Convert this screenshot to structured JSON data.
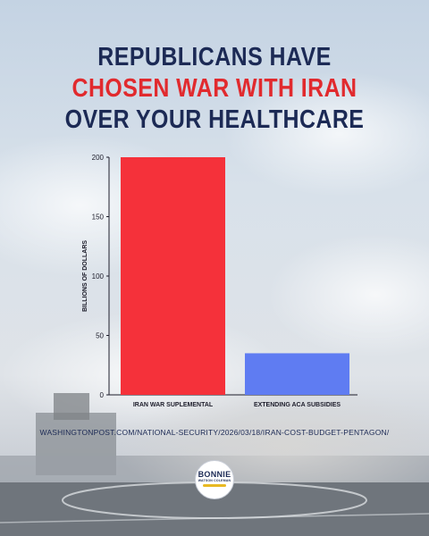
{
  "headline": {
    "line1": "REPUBLICANS HAVE",
    "line2": "CHOSEN WAR WITH IRAN",
    "line3": "OVER YOUR HEALTHCARE"
  },
  "source_url": "WASHINGTONPOST.COM/NATIONAL-SECURITY/2026/03/18/IRAN-COST-BUDGET-PENTAGON/",
  "logo": {
    "name": "BONNIE",
    "sub": "WATSON COLEMAN"
  },
  "colors": {
    "title_navy": "#1c2a55",
    "title_red": "#e12a2e",
    "bar_red": "#f5313a",
    "bar_blue": "#5f7cf2"
  },
  "chart_data": {
    "type": "bar",
    "categories": [
      "IRAN WAR SUPLEMENTAL",
      "EXTENDING ACA SUBSIDIES"
    ],
    "values": [
      200,
      35
    ],
    "bar_colors": [
      "#f5313a",
      "#5f7cf2"
    ],
    "ylabel": "BILLIONS OF DOLLARS",
    "xlabel": "",
    "ylim": [
      0,
      200
    ],
    "yticks": [
      0,
      50,
      100,
      150,
      200
    ],
    "grid": false
  }
}
